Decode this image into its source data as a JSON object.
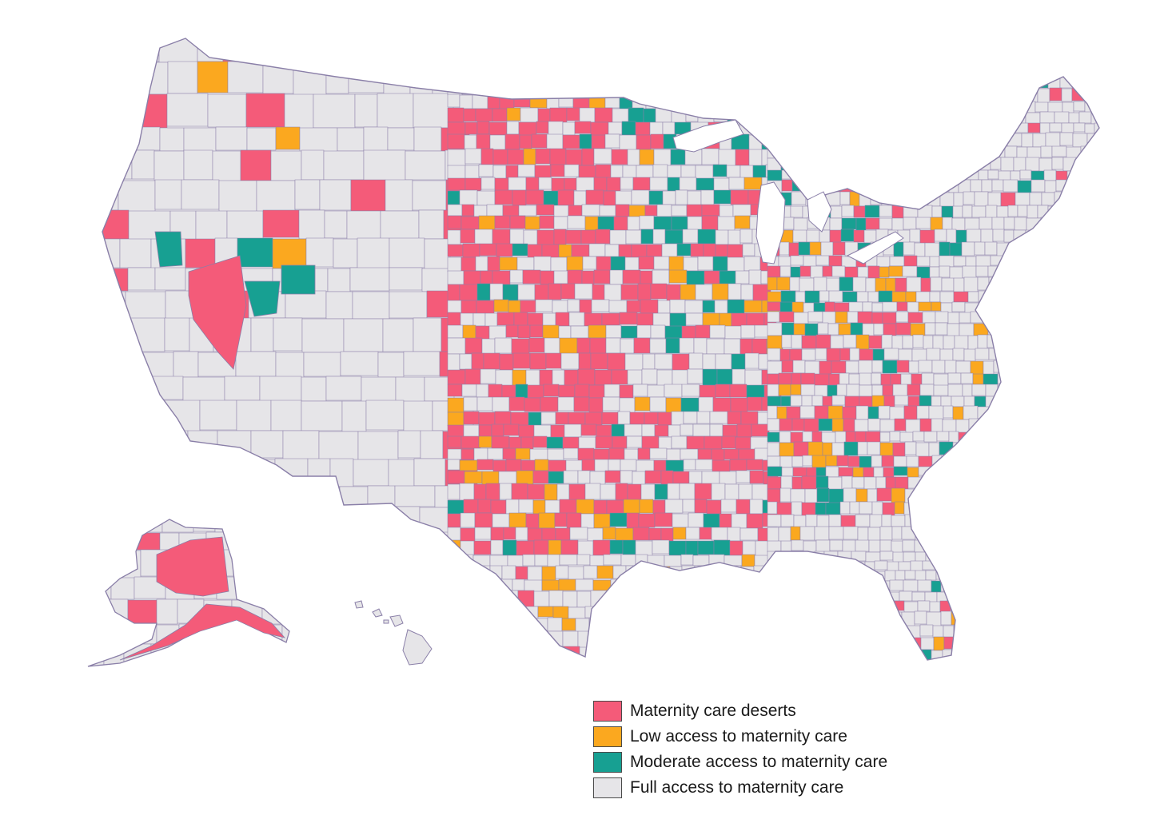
{
  "map": {
    "type": "choropleth",
    "region_level": "county",
    "regions_shown": [
      "Contiguous United States",
      "Alaska",
      "Hawaii"
    ],
    "border_color": "#8a7fa8",
    "category_colors": {
      "desert": "#f45b79",
      "low": "#fba81f",
      "moderate": "#17a092",
      "full": "#e6e5e8"
    }
  },
  "legend": {
    "items": [
      {
        "key": "desert",
        "label": "Maternity care deserts",
        "color": "#f45b79"
      },
      {
        "key": "low",
        "label": "Low access to maternity care",
        "color": "#fba81f"
      },
      {
        "key": "moderate",
        "label": "Moderate access to maternity care",
        "color": "#17a092"
      },
      {
        "key": "full",
        "label": "Full access to maternity care",
        "color": "#e6e5e8"
      }
    ]
  }
}
